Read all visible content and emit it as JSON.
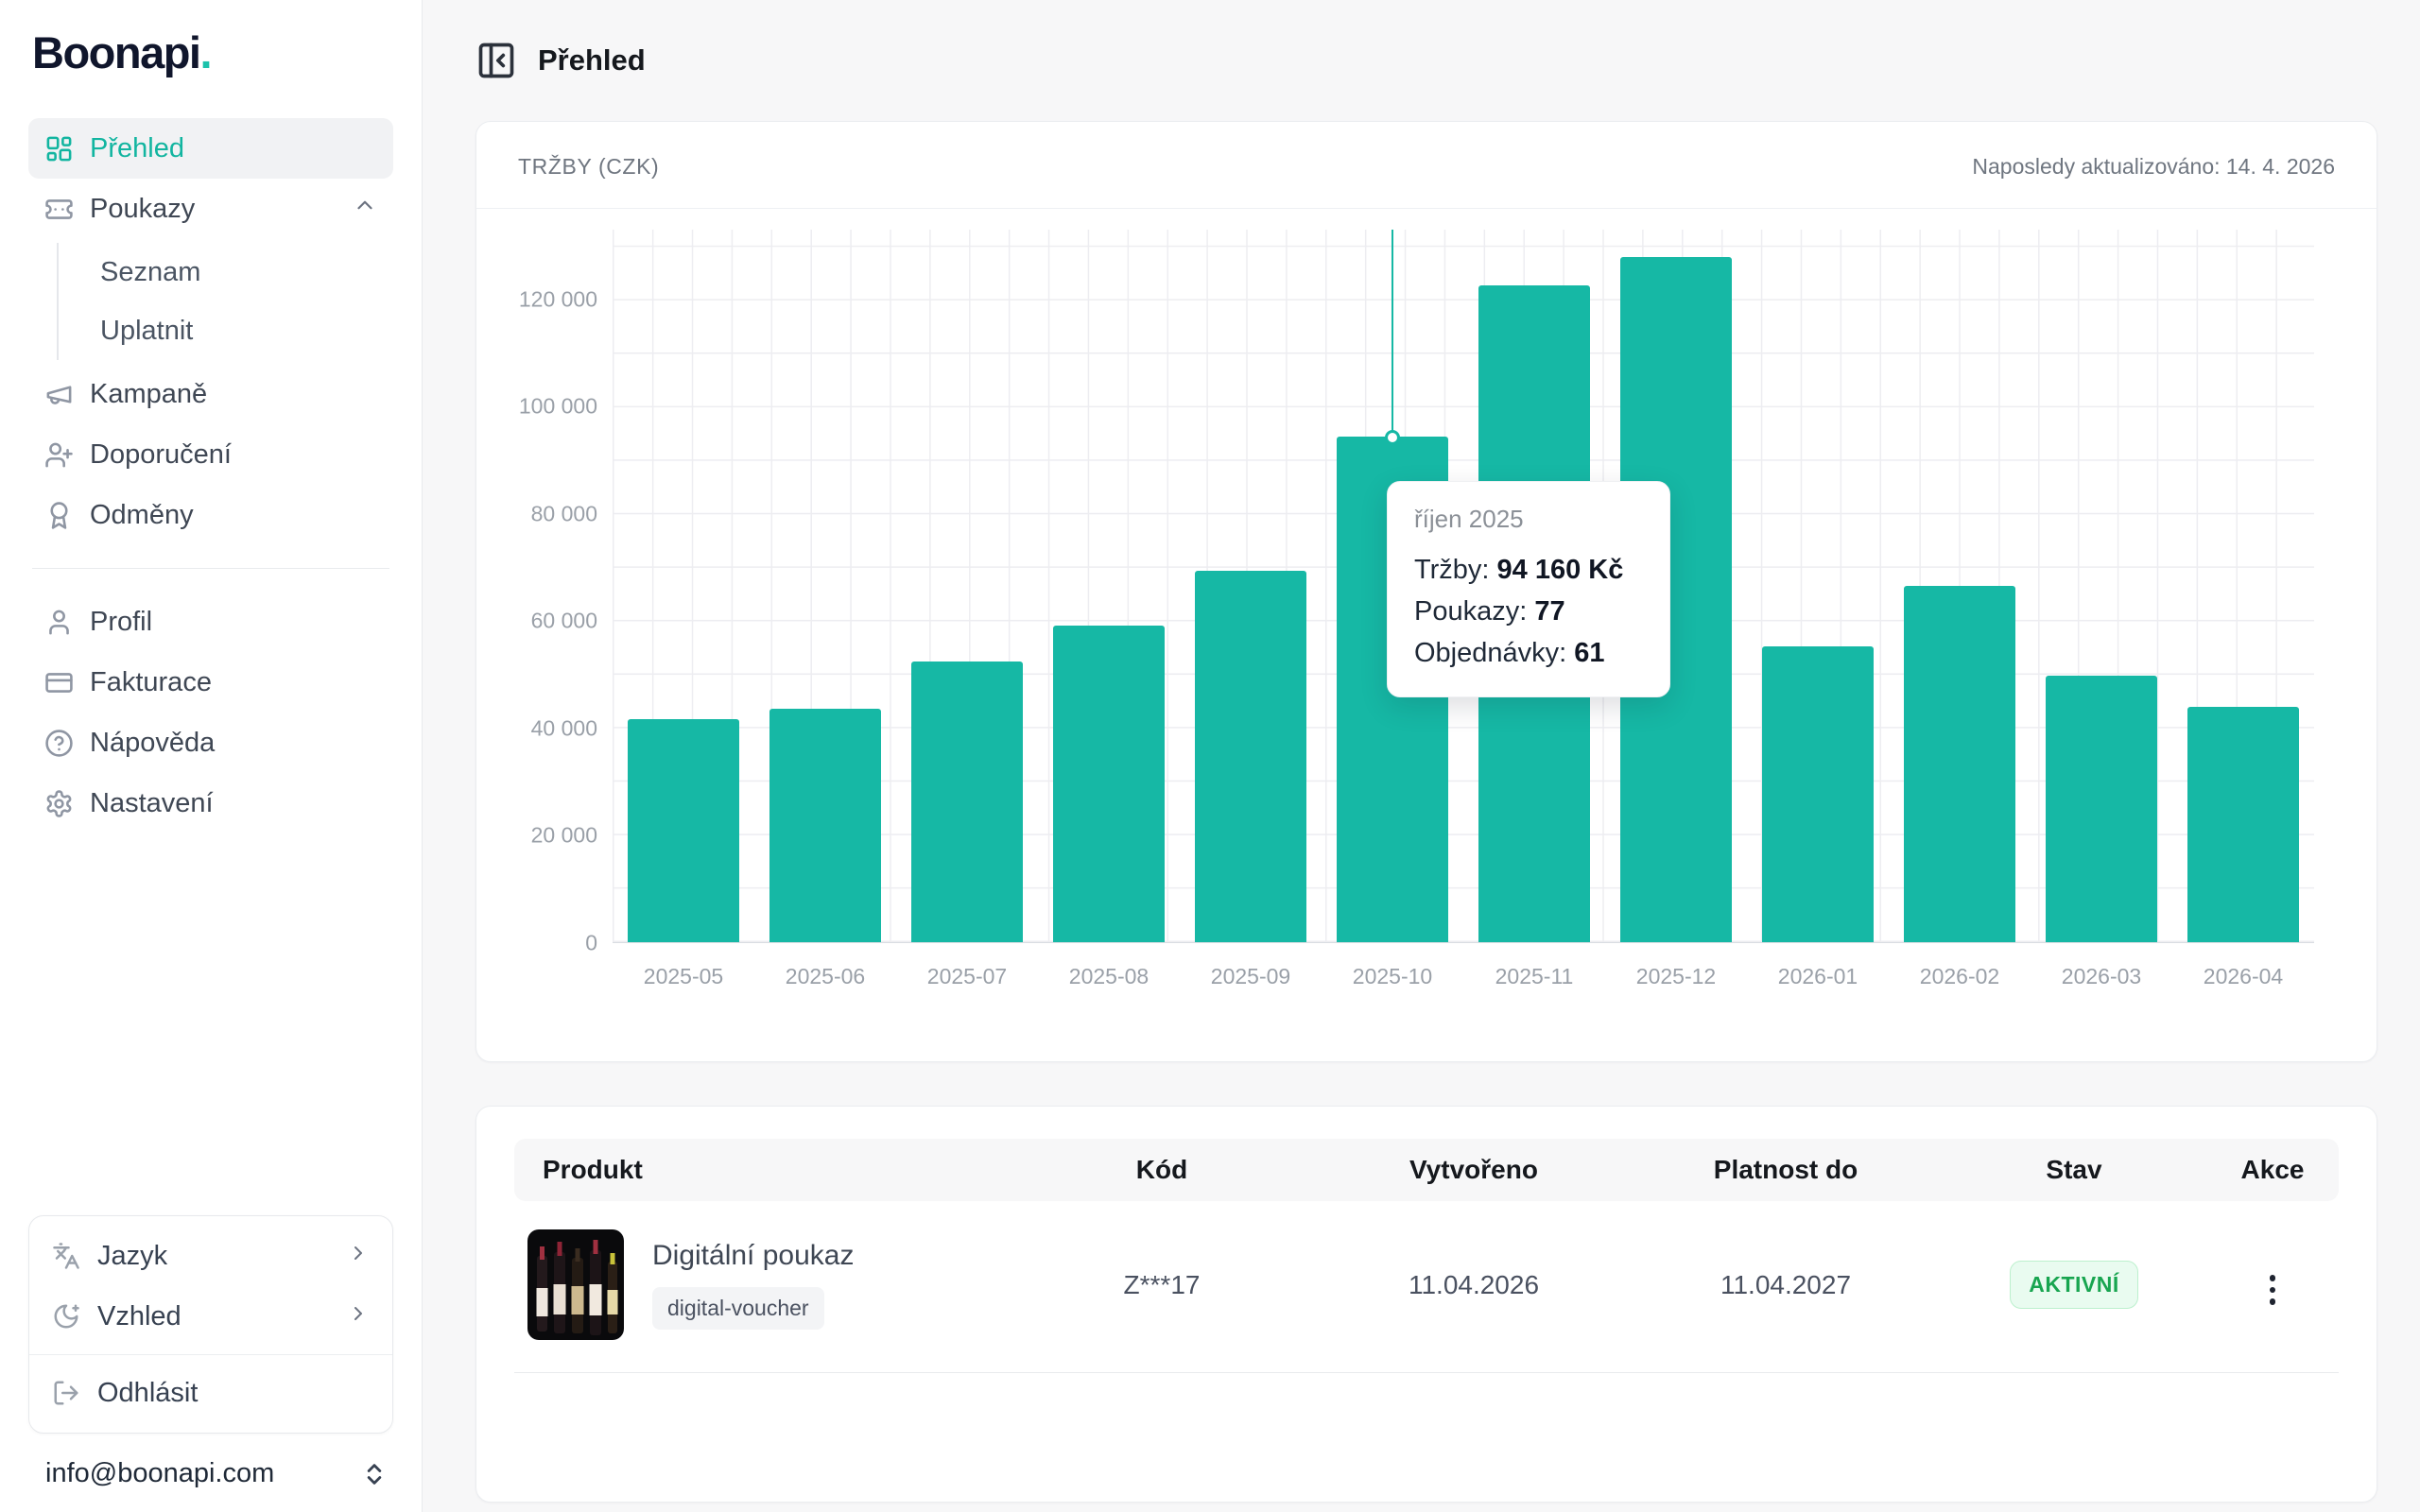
{
  "app": {
    "brand": "Boonapi",
    "brand_dot": "."
  },
  "sidebar": {
    "items": [
      {
        "label": "Přehled",
        "active": true
      },
      {
        "label": "Poukazy"
      },
      {
        "label": "Kampaně"
      },
      {
        "label": "Doporučení"
      },
      {
        "label": "Odměny"
      },
      {
        "label": "Profil"
      },
      {
        "label": "Fakturace"
      },
      {
        "label": "Nápověda"
      },
      {
        "label": "Nastavení"
      }
    ],
    "poukazy_submenu": [
      {
        "label": "Seznam"
      },
      {
        "label": "Uplatnit"
      }
    ],
    "footer_menu": [
      {
        "label": "Jazyk"
      },
      {
        "label": "Vzhled"
      },
      {
        "label": "Odhlásit"
      }
    ],
    "email": "info@boonapi.com"
  },
  "header": {
    "title": "Přehled"
  },
  "chart_card": {
    "title": "TRŽBY (CZK)",
    "updated": "Naposledy aktualizováno: 14. 4. 2026"
  },
  "chart_data": {
    "type": "bar",
    "title": "TRŽBY (CZK)",
    "categories": [
      "2025-05",
      "2025-06",
      "2025-07",
      "2025-08",
      "2025-09",
      "2025-10",
      "2025-11",
      "2025-12",
      "2026-01",
      "2026-02",
      "2026-03",
      "2026-04"
    ],
    "series": [
      {
        "name": "Tržby (Kč)",
        "values": [
          41500,
          43600,
          52300,
          59100,
          69200,
          94160,
          122400,
          127800,
          55200,
          66400,
          49700,
          43900
        ]
      }
    ],
    "yticks": [
      0,
      20000,
      40000,
      60000,
      80000,
      100000,
      120000
    ],
    "ytick_labels": [
      "0",
      "20 000",
      "40 000",
      "60 000",
      "80 000",
      "100 000",
      "120 000"
    ],
    "ylim": [
      0,
      133000
    ],
    "grid": true,
    "bar_color": "#16b8a5",
    "highlight_index": 5,
    "tooltip": {
      "title": "říjen 2025",
      "rows": [
        {
          "label": "Tržby: ",
          "value": "94 160 Kč"
        },
        {
          "label": "Poukazy: ",
          "value": "77"
        },
        {
          "label": "Objednávky: ",
          "value": "61"
        }
      ]
    }
  },
  "table": {
    "columns": [
      "Produkt",
      "Kód",
      "Vytvořeno",
      "Platnost do",
      "Stav",
      "Akce"
    ],
    "rows": [
      {
        "product": "Digitální poukaz",
        "tag": "digital-voucher",
        "code": "Z***17",
        "created": "11.04.2026",
        "valid_until": "11.04.2027",
        "status": "AKTIVNÍ"
      }
    ]
  },
  "colors": {
    "accent": "#16b8a5",
    "brand_navy": "#10162c",
    "status_active": "#18a550"
  }
}
